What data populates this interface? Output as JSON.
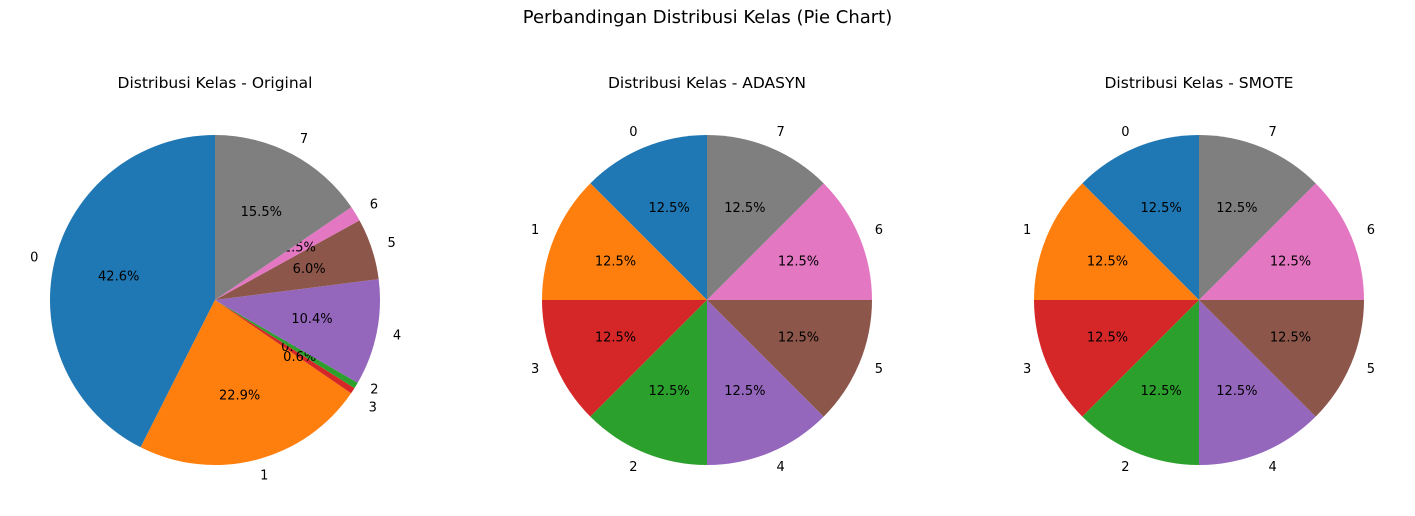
{
  "suptitle": "Perbandingan Distribusi Kelas (Pie Chart)",
  "colors": [
    "#1f77b4",
    "#ff7f0e",
    "#2ca02c",
    "#d62728",
    "#9467bd",
    "#8c564b",
    "#e377c2",
    "#7f7f7f"
  ],
  "chart_data": [
    {
      "type": "pie",
      "title": "Distribusi Kelas - Original",
      "labels": [
        "0",
        "1",
        "2",
        "3",
        "4",
        "5",
        "6",
        "7"
      ],
      "values": [
        42.6,
        22.9,
        0.6,
        0.6,
        10.4,
        6.0,
        1.5,
        15.5
      ],
      "slice_order": [
        "0",
        "1",
        "3",
        "2",
        "4",
        "5",
        "6",
        "7"
      ],
      "autopct_labels": [
        "42.6%",
        "22.9%",
        "0.6%",
        "0.6%",
        "10.4%",
        "6.0%",
        "1.5%",
        "15.5%"
      ],
      "start_angle_deg": 90
    },
    {
      "type": "pie",
      "title": "Distribusi Kelas - ADASYN",
      "labels": [
        "0",
        "1",
        "2",
        "3",
        "4",
        "5",
        "6",
        "7"
      ],
      "values": [
        12.5,
        12.5,
        12.5,
        12.5,
        12.5,
        12.5,
        12.5,
        12.5
      ],
      "slice_order": [
        "0",
        "1",
        "3",
        "2",
        "4",
        "5",
        "6",
        "7"
      ],
      "autopct_labels": [
        "12.5%",
        "12.5%",
        "12.5%",
        "12.5%",
        "12.5%",
        "12.5%",
        "12.5%",
        "12.5%"
      ],
      "start_angle_deg": 90
    },
    {
      "type": "pie",
      "title": "Distribusi Kelas - SMOTE",
      "labels": [
        "0",
        "1",
        "2",
        "3",
        "4",
        "5",
        "6",
        "7"
      ],
      "values": [
        12.5,
        12.5,
        12.5,
        12.5,
        12.5,
        12.5,
        12.5,
        12.5
      ],
      "slice_order": [
        "0",
        "1",
        "3",
        "2",
        "4",
        "5",
        "6",
        "7"
      ],
      "autopct_labels": [
        "12.5%",
        "12.5%",
        "12.5%",
        "12.5%",
        "12.5%",
        "12.5%",
        "12.5%",
        "12.5%"
      ],
      "start_angle_deg": 90
    }
  ]
}
